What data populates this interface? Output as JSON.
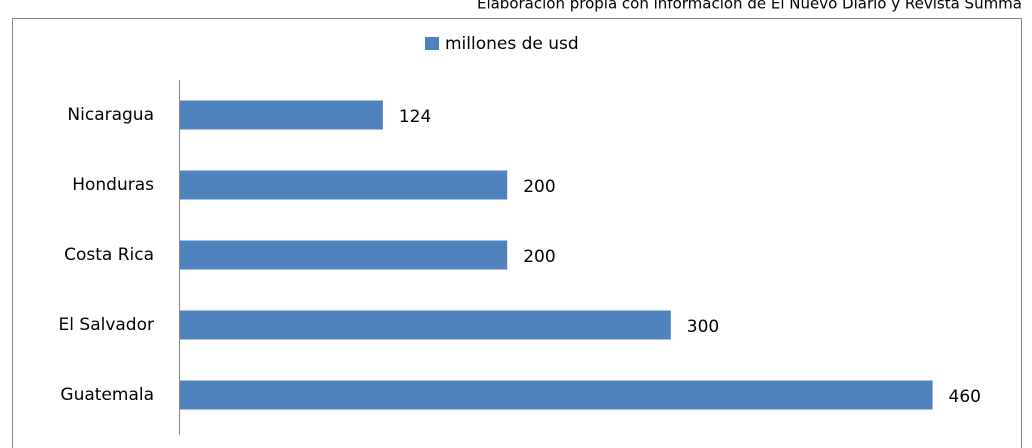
{
  "chart_data": {
    "type": "barh",
    "note": "Elaboración propia con información de El Nuevo Diario y Revista Summa",
    "categories": [
      "Nicaragua",
      "Honduras",
      "Costa Rica",
      "El Salvador",
      "Guatemala"
    ],
    "series": [
      {
        "name": "millones de usd",
        "color": "#4f81bd",
        "values": [
          124,
          200,
          200,
          300,
          460
        ]
      }
    ],
    "xlim": [
      0,
      500
    ],
    "legend": "top"
  }
}
